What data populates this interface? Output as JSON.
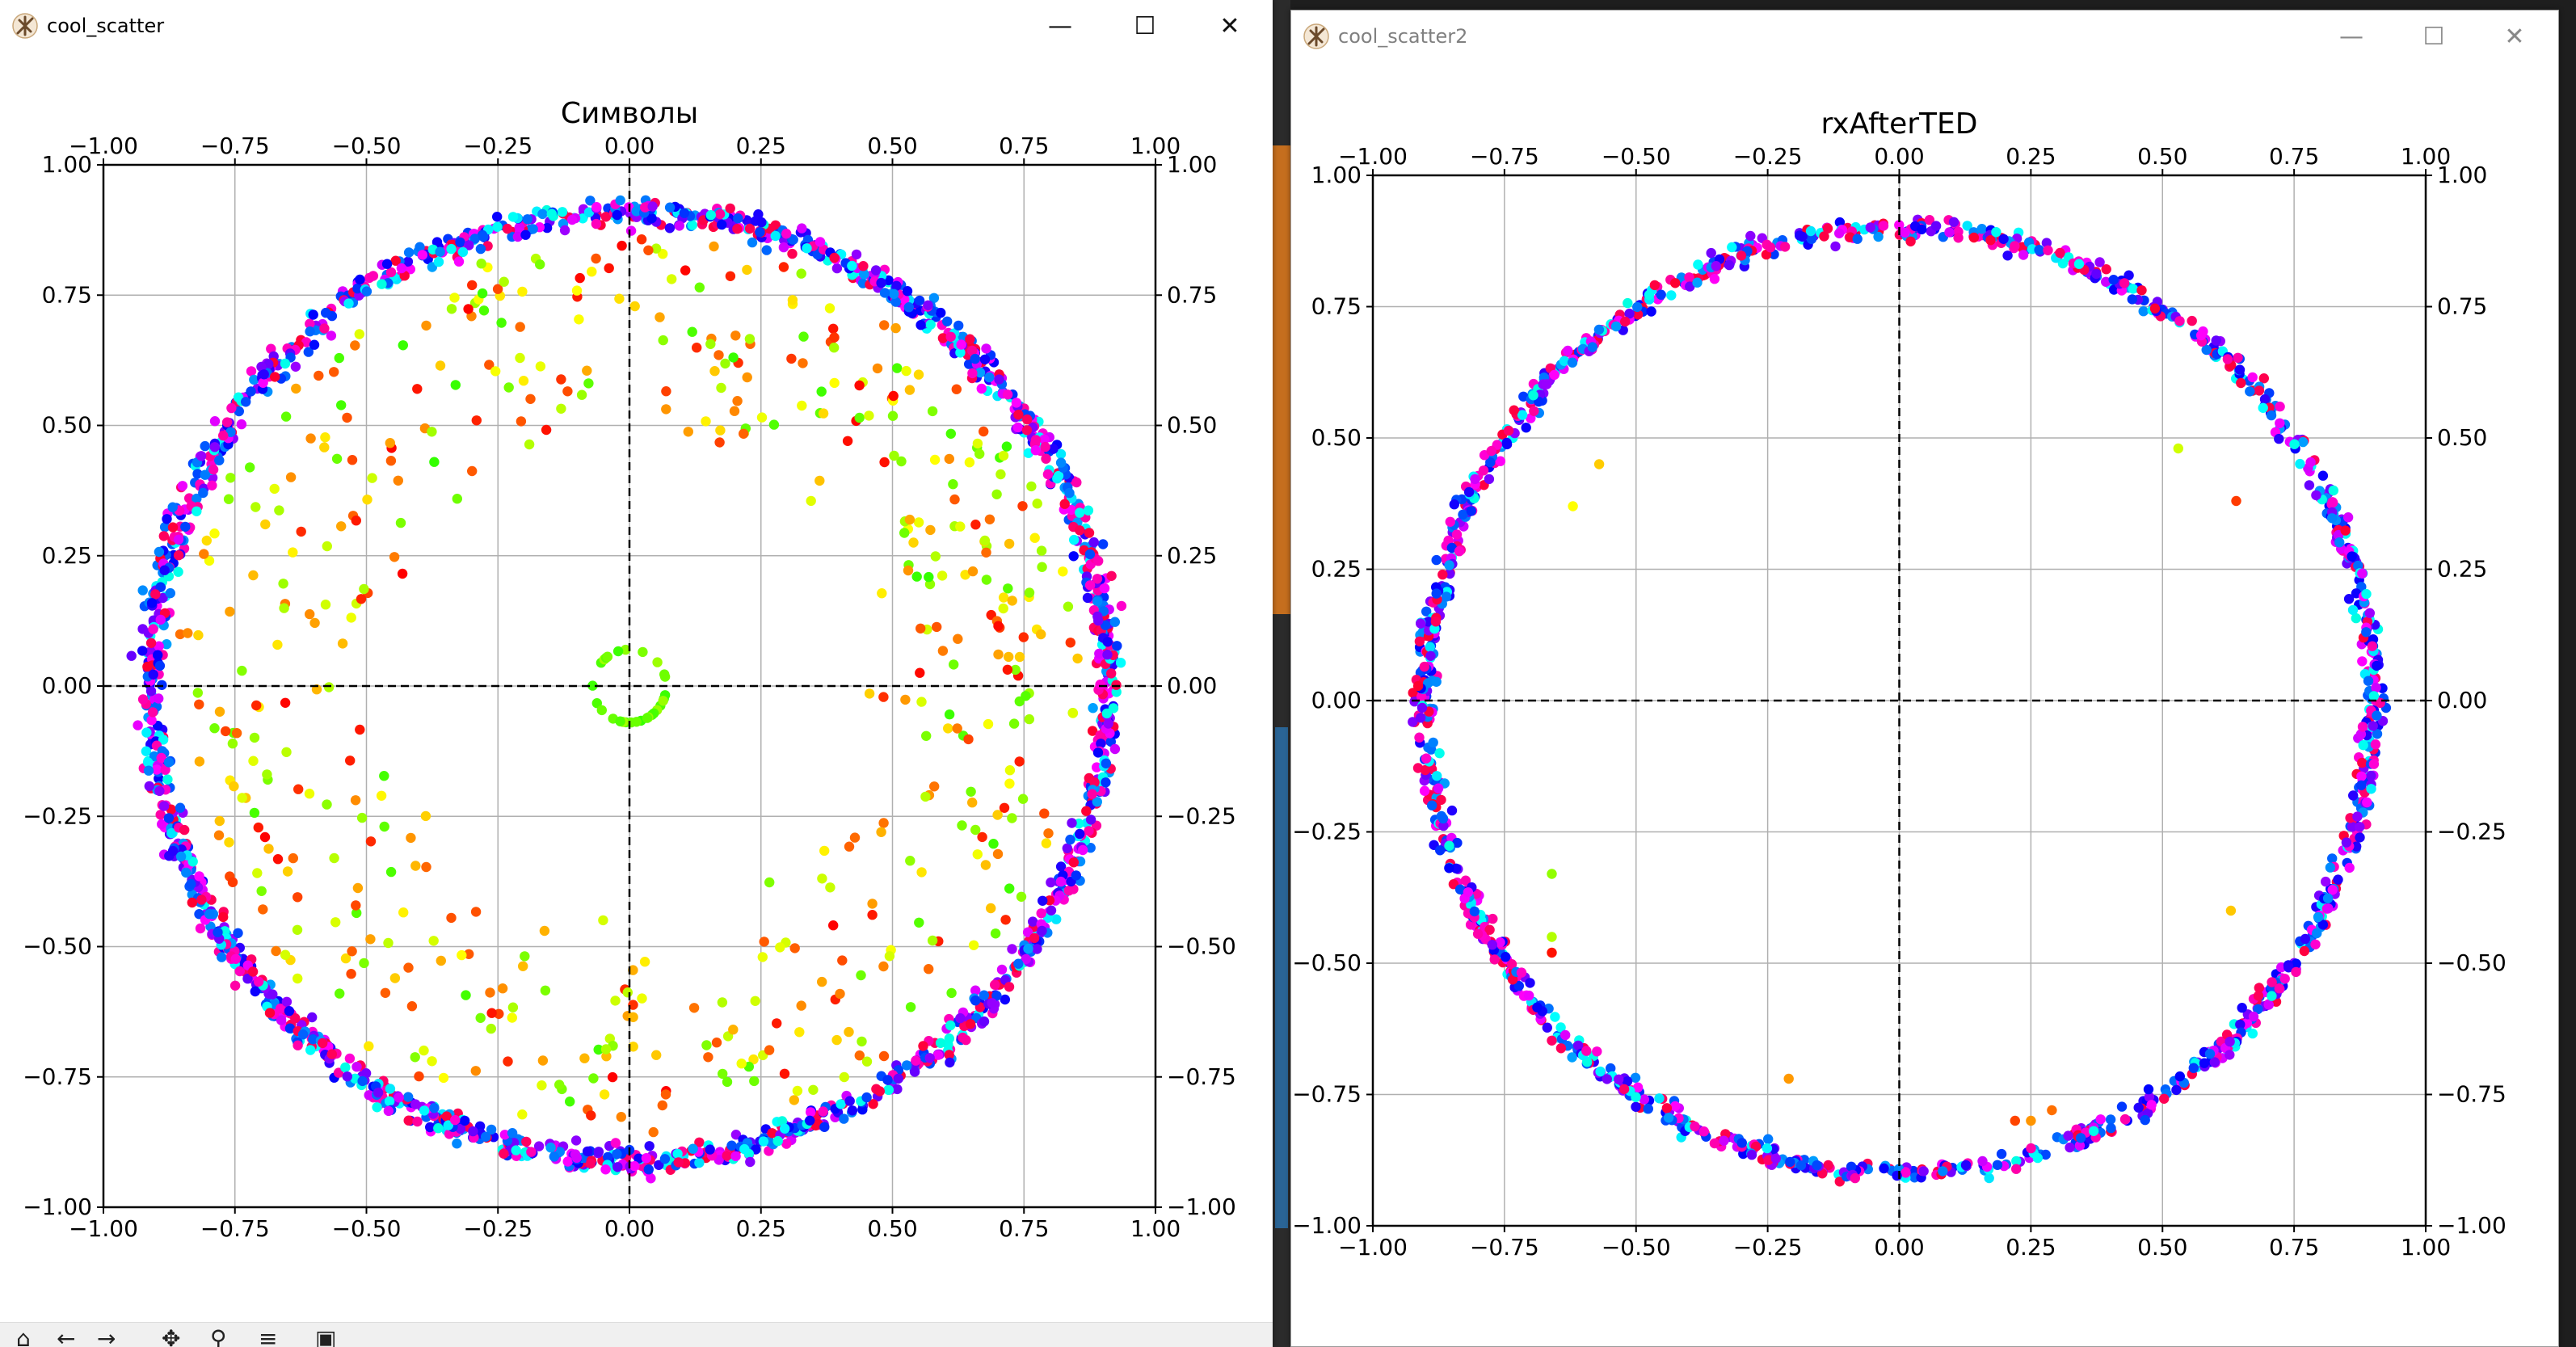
{
  "windows": [
    {
      "title": "cool_scatter",
      "controls": {
        "minimize": "—",
        "maximize": "☐",
        "close": "✕"
      },
      "chart_data": {
        "type": "scatter",
        "title": "Символы",
        "xlabel": "",
        "ylabel": "",
        "xlim": [
          -1.0,
          1.0
        ],
        "ylim": [
          -1.0,
          1.0
        ],
        "ticks": [
          -1.0,
          -0.75,
          -0.5,
          -0.25,
          0.0,
          0.25,
          0.5,
          0.75,
          1.0
        ],
        "tick_labels": [
          "−1.00",
          "−0.75",
          "−0.50",
          "−0.25",
          "0.00",
          "0.25",
          "0.50",
          "0.75",
          "1.00"
        ],
        "grid": true,
        "zero_lines": "dashed",
        "colormap": "hsv",
        "points": {
          "ring_radius": 0.91,
          "ring_spread": 0.025,
          "ring_count": 1700,
          "inner_count": 520,
          "inner_radius_range": [
            0.45,
            0.86
          ],
          "center_cluster_count": 30,
          "center_cluster_radius": 0.07
        }
      }
    },
    {
      "title": "cool_scatter2",
      "controls": {
        "minimize": "—",
        "maximize": "☐",
        "close": "✕"
      },
      "chart_data": {
        "type": "scatter",
        "title": "rxAfterTED",
        "xlabel": "",
        "ylabel": "",
        "xlim": [
          -1.0,
          1.0
        ],
        "ylim": [
          -1.0,
          1.0
        ],
        "ticks": [
          -1.0,
          -0.75,
          -0.5,
          -0.25,
          0.0,
          0.25,
          0.5,
          0.75,
          1.0
        ],
        "tick_labels": [
          "−1.00",
          "−0.75",
          "−0.50",
          "−0.25",
          "0.00",
          "0.25",
          "0.50",
          "0.75",
          "1.00"
        ],
        "grid": true,
        "zero_lines": "dashed",
        "colormap": "hsv",
        "points": {
          "ring_radius": 0.9,
          "ring_spread": 0.02,
          "ring_count": 1300,
          "outliers": [
            [
              -0.62,
              0.37
            ],
            [
              -0.57,
              0.45
            ],
            [
              0.53,
              0.48
            ],
            [
              0.64,
              0.38
            ],
            [
              -0.66,
              -0.45
            ],
            [
              -0.66,
              -0.48
            ],
            [
              -0.66,
              -0.33
            ],
            [
              0.63,
              -0.4
            ],
            [
              -0.21,
              -0.72
            ],
            [
              0.25,
              -0.8
            ],
            [
              0.22,
              -0.8
            ],
            [
              0.29,
              -0.78
            ]
          ]
        }
      }
    }
  ]
}
